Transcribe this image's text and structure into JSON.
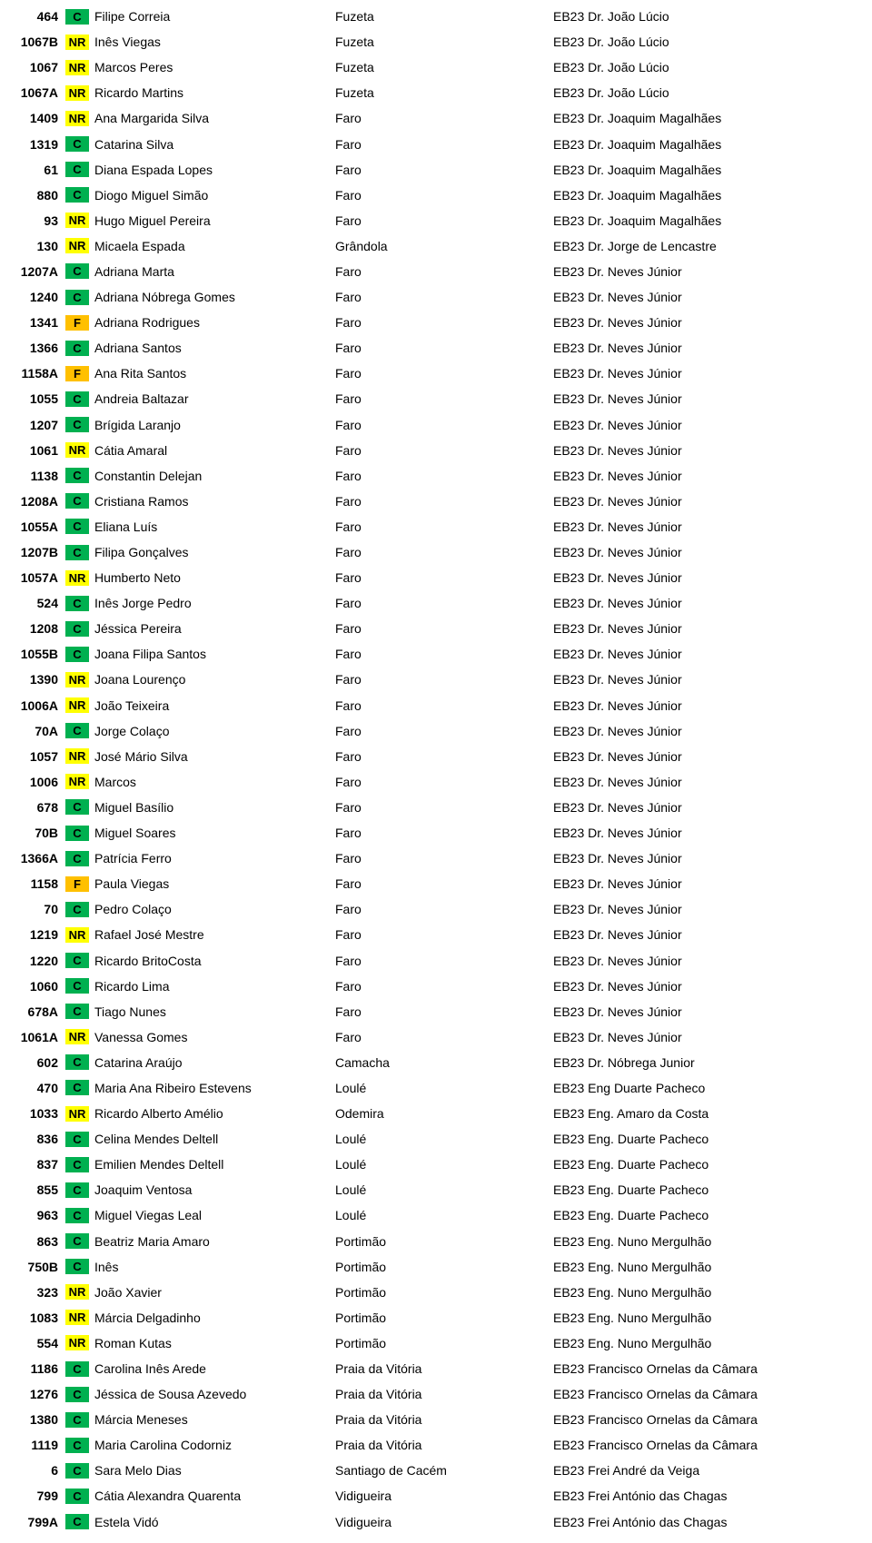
{
  "badgeColors": {
    "C": {
      "bg": "#00b050",
      "fg": "#000000"
    },
    "NR": {
      "bg": "#ffff00",
      "fg": "#000000"
    },
    "F": {
      "bg": "#ffc000",
      "fg": "#000000"
    }
  },
  "columns": {
    "num_width": 58,
    "badge_width": 26,
    "name_width": 265,
    "city_width": 240
  },
  "rows": [
    {
      "num": "464",
      "badge": "C",
      "name": "Filipe Correia",
      "city": "Fuzeta",
      "school": "EB23 Dr. João Lúcio"
    },
    {
      "num": "1067B",
      "badge": "NR",
      "name": "Inês Viegas",
      "city": "Fuzeta",
      "school": "EB23 Dr. João Lúcio"
    },
    {
      "num": "1067",
      "badge": "NR",
      "name": "Marcos Peres",
      "city": "Fuzeta",
      "school": "EB23 Dr. João Lúcio"
    },
    {
      "num": "1067A",
      "badge": "NR",
      "name": "Ricardo Martins",
      "city": "Fuzeta",
      "school": "EB23 Dr. João Lúcio"
    },
    {
      "num": "1409",
      "badge": "NR",
      "name": "Ana Margarida Silva",
      "city": "Faro",
      "school": "EB23 Dr. Joaquim Magalhães"
    },
    {
      "num": "1319",
      "badge": "C",
      "name": "Catarina Silva",
      "city": "Faro",
      "school": "EB23 Dr. Joaquim Magalhães"
    },
    {
      "num": "61",
      "badge": "C",
      "name": "Diana Espada Lopes",
      "city": "Faro",
      "school": "EB23 Dr. Joaquim Magalhães"
    },
    {
      "num": "880",
      "badge": "C",
      "name": "Diogo Miguel Simão",
      "city": "Faro",
      "school": "EB23 Dr. Joaquim Magalhães"
    },
    {
      "num": "93",
      "badge": "NR",
      "name": "Hugo Miguel Pereira",
      "city": "Faro",
      "school": "EB23 Dr. Joaquim Magalhães"
    },
    {
      "num": "130",
      "badge": "NR",
      "name": "Micaela Espada",
      "city": "Grândola",
      "school": "EB23 Dr. Jorge de Lencastre"
    },
    {
      "num": "1207A",
      "badge": "C",
      "name": "Adriana Marta",
      "city": "Faro",
      "school": "EB23 Dr. Neves Júnior"
    },
    {
      "num": "1240",
      "badge": "C",
      "name": "Adriana Nóbrega Gomes",
      "city": "Faro",
      "school": "EB23 Dr. Neves Júnior"
    },
    {
      "num": "1341",
      "badge": "F",
      "name": "Adriana Rodrigues",
      "city": "Faro",
      "school": "EB23 Dr. Neves Júnior"
    },
    {
      "num": "1366",
      "badge": "C",
      "name": "Adriana Santos",
      "city": "Faro",
      "school": "EB23 Dr. Neves Júnior"
    },
    {
      "num": "1158A",
      "badge": "F",
      "name": "Ana Rita Santos",
      "city": "Faro",
      "school": "EB23 Dr. Neves Júnior"
    },
    {
      "num": "1055",
      "badge": "C",
      "name": "Andreia Baltazar",
      "city": "Faro",
      "school": "EB23 Dr. Neves Júnior"
    },
    {
      "num": "1207",
      "badge": "C",
      "name": "Brígida Laranjo",
      "city": "Faro",
      "school": "EB23 Dr. Neves Júnior"
    },
    {
      "num": "1061",
      "badge": "NR",
      "name": "Cátia Amaral",
      "city": "Faro",
      "school": "EB23 Dr. Neves Júnior"
    },
    {
      "num": "1138",
      "badge": "C",
      "name": "Constantin Delejan",
      "city": "Faro",
      "school": "EB23 Dr. Neves Júnior"
    },
    {
      "num": "1208A",
      "badge": "C",
      "name": "Cristiana Ramos",
      "city": "Faro",
      "school": "EB23 Dr. Neves Júnior"
    },
    {
      "num": "1055A",
      "badge": "C",
      "name": "Eliana Luís",
      "city": "Faro",
      "school": "EB23 Dr. Neves Júnior"
    },
    {
      "num": "1207B",
      "badge": "C",
      "name": "Filipa Gonçalves",
      "city": "Faro",
      "school": "EB23 Dr. Neves Júnior"
    },
    {
      "num": "1057A",
      "badge": "NR",
      "name": "Humberto Neto",
      "city": "Faro",
      "school": "EB23 Dr. Neves Júnior"
    },
    {
      "num": "524",
      "badge": "C",
      "name": "Inês Jorge Pedro",
      "city": "Faro",
      "school": "EB23 Dr. Neves Júnior"
    },
    {
      "num": "1208",
      "badge": "C",
      "name": "Jéssica Pereira",
      "city": "Faro",
      "school": "EB23 Dr. Neves Júnior"
    },
    {
      "num": "1055B",
      "badge": "C",
      "name": "Joana Filipa Santos",
      "city": "Faro",
      "school": "EB23 Dr. Neves Júnior"
    },
    {
      "num": "1390",
      "badge": "NR",
      "name": "Joana Lourenço",
      "city": "Faro",
      "school": "EB23 Dr. Neves Júnior"
    },
    {
      "num": "1006A",
      "badge": "NR",
      "name": "João Teixeira",
      "city": "Faro",
      "school": "EB23 Dr. Neves Júnior"
    },
    {
      "num": "70A",
      "badge": "C",
      "name": "Jorge Colaço",
      "city": "Faro",
      "school": "EB23 Dr. Neves Júnior"
    },
    {
      "num": "1057",
      "badge": "NR",
      "name": "José Mário Silva",
      "city": "Faro",
      "school": "EB23 Dr. Neves Júnior"
    },
    {
      "num": "1006",
      "badge": "NR",
      "name": "Marcos",
      "city": "Faro",
      "school": "EB23 Dr. Neves Júnior"
    },
    {
      "num": "678",
      "badge": "C",
      "name": "Miguel Basílio",
      "city": "Faro",
      "school": "EB23 Dr. Neves Júnior"
    },
    {
      "num": "70B",
      "badge": "C",
      "name": "Miguel Soares",
      "city": "Faro",
      "school": "EB23 Dr. Neves Júnior"
    },
    {
      "num": "1366A",
      "badge": "C",
      "name": "Patrícia Ferro",
      "city": "Faro",
      "school": "EB23 Dr. Neves Júnior"
    },
    {
      "num": "1158",
      "badge": "F",
      "name": "Paula Viegas",
      "city": "Faro",
      "school": "EB23 Dr. Neves Júnior"
    },
    {
      "num": "70",
      "badge": "C",
      "name": "Pedro Colaço",
      "city": "Faro",
      "school": "EB23 Dr. Neves Júnior"
    },
    {
      "num": "1219",
      "badge": "NR",
      "name": "Rafael José Mestre",
      "city": "Faro",
      "school": "EB23 Dr. Neves Júnior"
    },
    {
      "num": "1220",
      "badge": "C",
      "name": "Ricardo BritoCosta",
      "city": "Faro",
      "school": "EB23 Dr. Neves Júnior"
    },
    {
      "num": "1060",
      "badge": "C",
      "name": "Ricardo Lima",
      "city": "Faro",
      "school": "EB23 Dr. Neves Júnior"
    },
    {
      "num": "678A",
      "badge": "C",
      "name": "Tiago Nunes",
      "city": "Faro",
      "school": "EB23 Dr. Neves Júnior"
    },
    {
      "num": "1061A",
      "badge": "NR",
      "name": "Vanessa Gomes",
      "city": "Faro",
      "school": "EB23 Dr. Neves Júnior"
    },
    {
      "num": "602",
      "badge": "C",
      "name": "Catarina Araújo",
      "city": "Camacha",
      "school": "EB23 Dr. Nóbrega Junior"
    },
    {
      "num": "470",
      "badge": "C",
      "name": "Maria Ana Ribeiro Estevens",
      "city": "Loulé",
      "school": "EB23 Eng Duarte Pacheco"
    },
    {
      "num": "1033",
      "badge": "NR",
      "name": "Ricardo Alberto Amélio",
      "city": "Odemira",
      "school": "EB23 Eng. Amaro da Costa"
    },
    {
      "num": "836",
      "badge": "C",
      "name": "Celina Mendes Deltell",
      "city": "Loulé",
      "school": "EB23 Eng. Duarte Pacheco"
    },
    {
      "num": "837",
      "badge": "C",
      "name": "Emilien Mendes Deltell",
      "city": "Loulé",
      "school": "EB23 Eng. Duarte Pacheco"
    },
    {
      "num": "855",
      "badge": "C",
      "name": "Joaquim Ventosa",
      "city": "Loulé",
      "school": "EB23 Eng. Duarte Pacheco"
    },
    {
      "num": "963",
      "badge": "C",
      "name": "Miguel Viegas Leal",
      "city": "Loulé",
      "school": "EB23 Eng. Duarte Pacheco"
    },
    {
      "num": "863",
      "badge": "C",
      "name": "Beatriz Maria Amaro",
      "city": "Portimão",
      "school": "EB23 Eng. Nuno Mergulhão"
    },
    {
      "num": "750B",
      "badge": "C",
      "name": "Inês",
      "city": "Portimão",
      "school": "EB23 Eng. Nuno Mergulhão"
    },
    {
      "num": "323",
      "badge": "NR",
      "name": "João Xavier",
      "city": "Portimão",
      "school": "EB23 Eng. Nuno Mergulhão"
    },
    {
      "num": "1083",
      "badge": "NR",
      "name": "Márcia Delgadinho",
      "city": "Portimão",
      "school": "EB23 Eng. Nuno Mergulhão"
    },
    {
      "num": "554",
      "badge": "NR",
      "name": "Roman Kutas",
      "city": "Portimão",
      "school": "EB23 Eng. Nuno Mergulhão"
    },
    {
      "num": "1186",
      "badge": "C",
      "name": "Carolina Inês Arede",
      "city": "Praia da Vitória",
      "school": "EB23 Francisco Ornelas da Câmara"
    },
    {
      "num": "1276",
      "badge": "C",
      "name": "Jéssica de Sousa Azevedo",
      "city": "Praia da Vitória",
      "school": "EB23 Francisco Ornelas da Câmara"
    },
    {
      "num": "1380",
      "badge": "C",
      "name": "Márcia Meneses",
      "city": "Praia da Vitória",
      "school": "EB23 Francisco Ornelas da Câmara"
    },
    {
      "num": "1119",
      "badge": "C",
      "name": "Maria Carolina Codorniz",
      "city": "Praia da Vitória",
      "school": "EB23 Francisco Ornelas da Câmara"
    },
    {
      "num": "6",
      "badge": "C",
      "name": "Sara Melo Dias",
      "city": "Santiago de Cacém",
      "school": "EB23 Frei André da Veiga"
    },
    {
      "num": "799",
      "badge": "C",
      "name": "Cátia Alexandra Quarenta",
      "city": "Vidigueira",
      "school": "EB23 Frei António das Chagas"
    },
    {
      "num": "799A",
      "badge": "C",
      "name": "Estela Vidó",
      "city": "Vidigueira",
      "school": "EB23 Frei António das Chagas"
    }
  ]
}
